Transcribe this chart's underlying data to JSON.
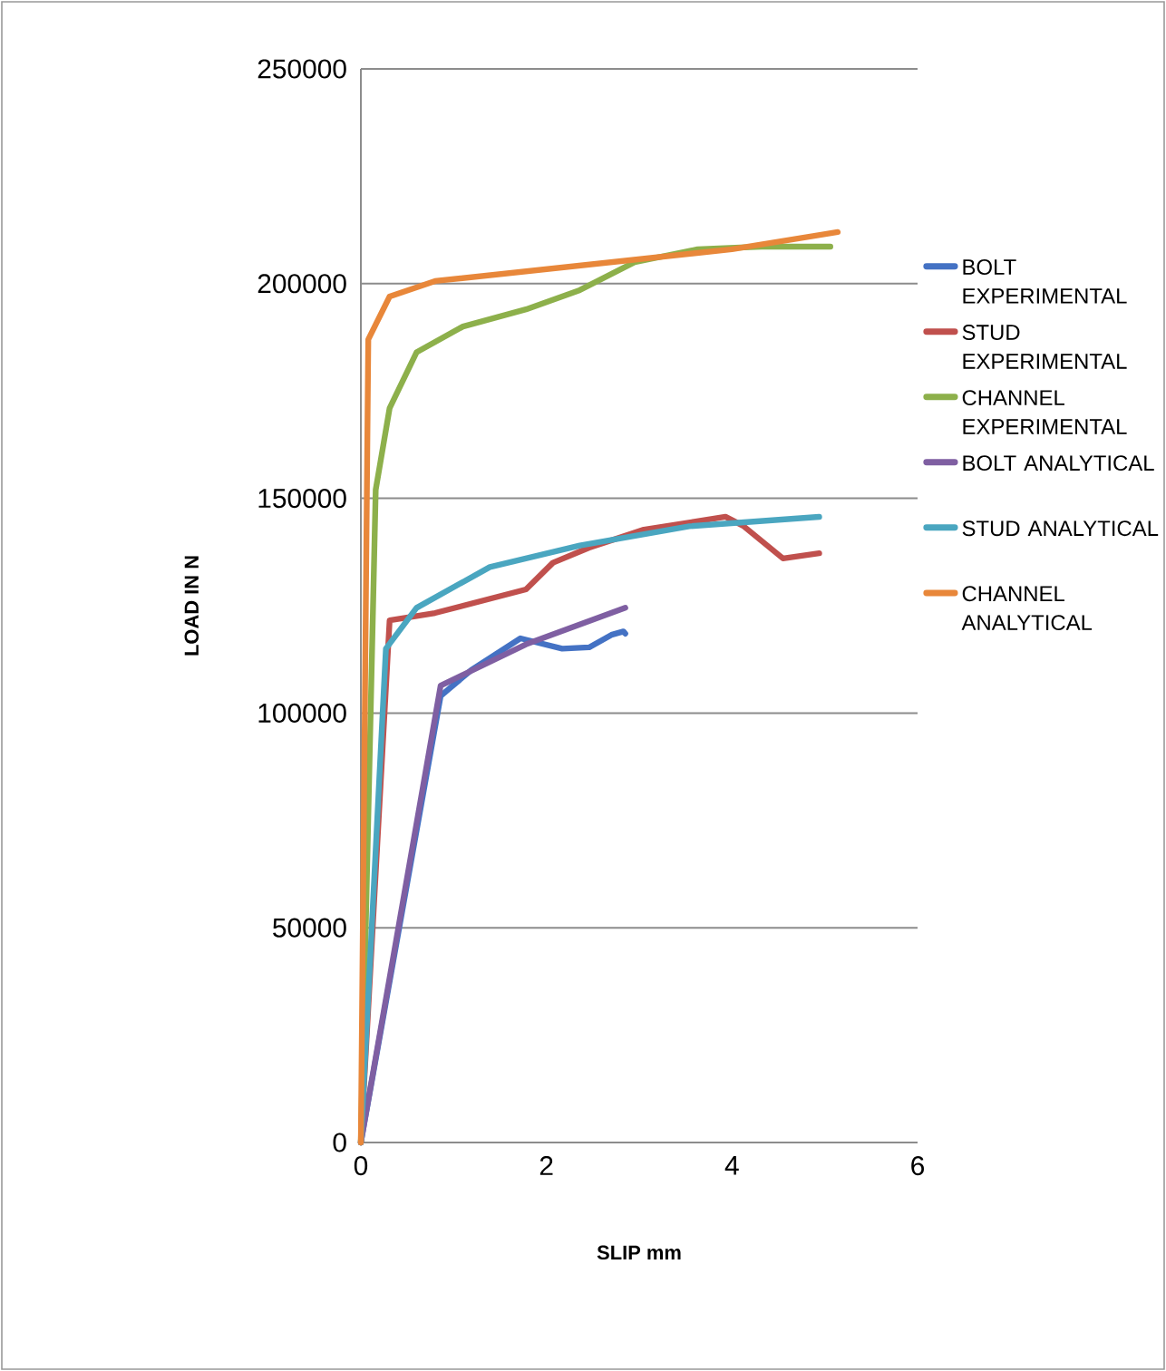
{
  "chart_data": {
    "type": "line",
    "xlabel": "SLIP mm",
    "ylabel": "LOAD IN N",
    "xlim": [
      0,
      6
    ],
    "ylim": [
      0,
      250000
    ],
    "xticks": [
      0,
      2,
      4,
      6
    ],
    "yticks": [
      0,
      50000,
      100000,
      150000,
      200000,
      250000
    ],
    "grid": "y",
    "legend": "right",
    "marker": "none",
    "line_style": "solid",
    "series": [
      {
        "name": "BOLT EXPERIMENTAL",
        "color": "#4472c4",
        "x": [
          0,
          0.86,
          1.19,
          1.72,
          2.17,
          2.46,
          2.7,
          2.83,
          2.85
        ],
        "values": [
          0,
          104000,
          110000,
          117400,
          115000,
          115300,
          118200,
          119000,
          118500
        ]
      },
      {
        "name": "STUD EXPERIMENTAL",
        "color": "#c0504d",
        "x": [
          0,
          0.31,
          0.8,
          1.78,
          2.07,
          2.46,
          3.05,
          3.93,
          4.12,
          4.55,
          4.94
        ],
        "values": [
          0,
          121600,
          123300,
          128800,
          135000,
          138500,
          142700,
          145700,
          143600,
          136000,
          137200
        ]
      },
      {
        "name": "CHANNEL EXPERIMENTAL",
        "color": "#8db04b",
        "x": [
          0,
          0.16,
          0.31,
          0.6,
          1.1,
          1.78,
          2.36,
          2.95,
          3.63,
          4.32,
          5.06
        ],
        "values": [
          0,
          152000,
          171000,
          184000,
          190000,
          194000,
          198500,
          205000,
          208000,
          208600,
          208600
        ]
      },
      {
        "name": "BOLT ANALYTICAL",
        "color": "#7f5fa2",
        "x": [
          0,
          0.86,
          1.78,
          2.85
        ],
        "values": [
          0,
          106400,
          116000,
          124500
        ]
      },
      {
        "name": "STUD ANALYTICAL",
        "color": "#4aa6c0",
        "x": [
          0,
          0.27,
          0.6,
          1.39,
          2.36,
          3.54,
          4.94
        ],
        "values": [
          0,
          115000,
          124500,
          134000,
          139000,
          143500,
          145700
        ]
      },
      {
        "name": "CHANNEL ANALYTICAL",
        "color": "#e8873a",
        "x": [
          0,
          0.08,
          0.31,
          0.8,
          4.0,
          5.14
        ],
        "values": [
          0,
          187000,
          197000,
          200600,
          208000,
          212000
        ]
      }
    ]
  }
}
